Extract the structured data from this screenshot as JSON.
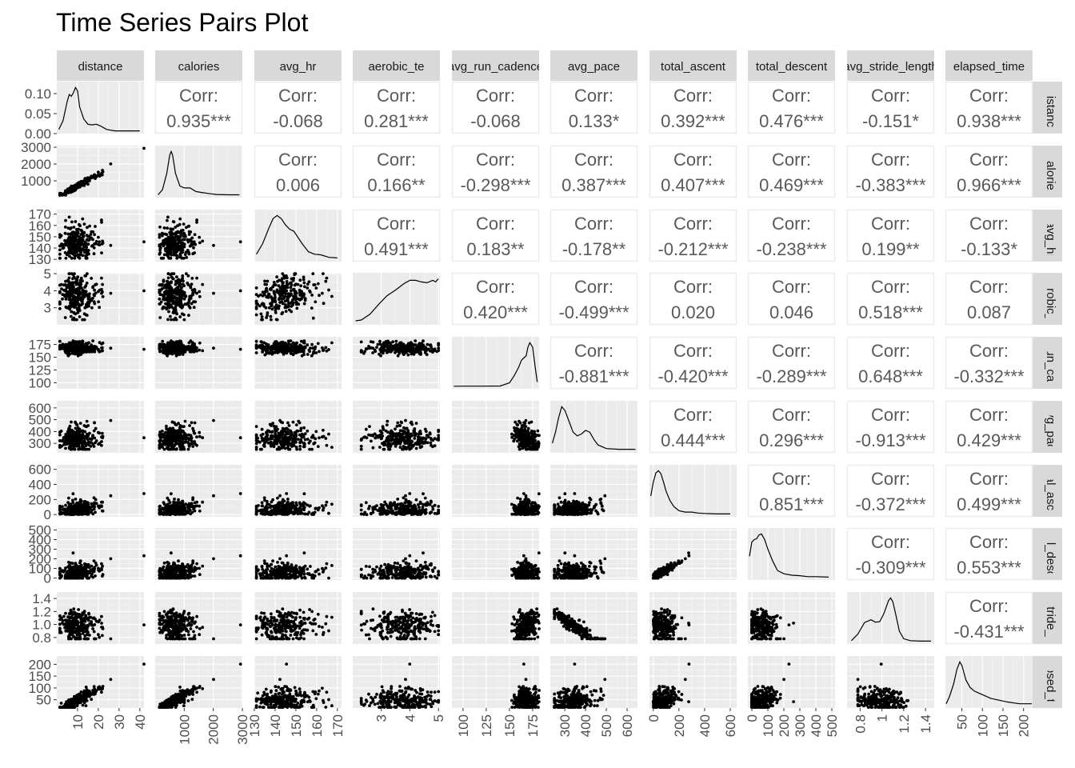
{
  "chart_data": {
    "type": "scatter",
    "title": "Time Series Pairs Plot",
    "variables": [
      "distance",
      "calories",
      "avg_hr",
      "aerobic_te",
      "avg_run_cadence",
      "avg_pace",
      "total_ascent",
      "total_descent",
      "avg_stride_length",
      "elapsed_time"
    ],
    "strip_labels_top": [
      "distance",
      "calories",
      "avg_hr",
      "aerobic_te",
      "avg_run_cadence",
      "avg_pace",
      "total_ascent",
      "total_descent",
      "avg_stride_length",
      "elapsed_time"
    ],
    "strip_labels_right": [
      "distance",
      "calories",
      "avg_hr",
      "aerobic_te",
      "avg_run_cadence",
      "avg_pace",
      "total_ascent",
      "total_descent",
      "avg_stride_length",
      "elapsed_time"
    ],
    "corr_label": "Corr:",
    "correlations": [
      {
        "row": "calories",
        "col": "distance",
        "label": "0.935***"
      },
      {
        "row": "avg_hr",
        "col": "distance",
        "label": "-0.068"
      },
      {
        "row": "aerobic_te",
        "col": "distance",
        "label": "0.281***"
      },
      {
        "row": "avg_run_cadence",
        "col": "distance",
        "label": "-0.068"
      },
      {
        "row": "avg_pace",
        "col": "distance",
        "label": "0.133*"
      },
      {
        "row": "total_ascent",
        "col": "distance",
        "label": "0.392***"
      },
      {
        "row": "total_descent",
        "col": "distance",
        "label": "0.476***"
      },
      {
        "row": "avg_stride_length",
        "col": "distance",
        "label": "-0.151*"
      },
      {
        "row": "elapsed_time",
        "col": "distance",
        "label": "0.938***"
      },
      {
        "row": "avg_hr",
        "col": "calories",
        "label": "0.006"
      },
      {
        "row": "aerobic_te",
        "col": "calories",
        "label": "0.166**"
      },
      {
        "row": "avg_run_cadence",
        "col": "calories",
        "label": "-0.298***"
      },
      {
        "row": "avg_pace",
        "col": "calories",
        "label": "0.387***"
      },
      {
        "row": "total_ascent",
        "col": "calories",
        "label": "0.407***"
      },
      {
        "row": "total_descent",
        "col": "calories",
        "label": "0.469***"
      },
      {
        "row": "avg_stride_length",
        "col": "calories",
        "label": "-0.383***"
      },
      {
        "row": "elapsed_time",
        "col": "calories",
        "label": "0.966***"
      },
      {
        "row": "aerobic_te",
        "col": "avg_hr",
        "label": "0.491***"
      },
      {
        "row": "avg_run_cadence",
        "col": "avg_hr",
        "label": "0.183**"
      },
      {
        "row": "avg_pace",
        "col": "avg_hr",
        "label": "-0.178**"
      },
      {
        "row": "total_ascent",
        "col": "avg_hr",
        "label": "-0.212***"
      },
      {
        "row": "total_descent",
        "col": "avg_hr",
        "label": "-0.238***"
      },
      {
        "row": "avg_stride_length",
        "col": "avg_hr",
        "label": "0.199**"
      },
      {
        "row": "elapsed_time",
        "col": "avg_hr",
        "label": "-0.133*"
      },
      {
        "row": "avg_run_cadence",
        "col": "aerobic_te",
        "label": "0.420***"
      },
      {
        "row": "avg_pace",
        "col": "aerobic_te",
        "label": "-0.499***"
      },
      {
        "row": "total_ascent",
        "col": "aerobic_te",
        "label": "0.020"
      },
      {
        "row": "total_descent",
        "col": "aerobic_te",
        "label": "0.046"
      },
      {
        "row": "avg_stride_length",
        "col": "aerobic_te",
        "label": "0.518***"
      },
      {
        "row": "elapsed_time",
        "col": "aerobic_te",
        "label": "0.087"
      },
      {
        "row": "avg_pace",
        "col": "avg_run_cadence",
        "label": "-0.881***"
      },
      {
        "row": "total_ascent",
        "col": "avg_run_cadence",
        "label": "-0.420***"
      },
      {
        "row": "total_descent",
        "col": "avg_run_cadence",
        "label": "-0.289***"
      },
      {
        "row": "avg_stride_length",
        "col": "avg_run_cadence",
        "label": "0.648***"
      },
      {
        "row": "elapsed_time",
        "col": "avg_run_cadence",
        "label": "-0.332***"
      },
      {
        "row": "total_ascent",
        "col": "avg_pace",
        "label": "0.444***"
      },
      {
        "row": "total_descent",
        "col": "avg_pace",
        "label": "0.296***"
      },
      {
        "row": "avg_stride_length",
        "col": "avg_pace",
        "label": "-0.913***"
      },
      {
        "row": "elapsed_time",
        "col": "avg_pace",
        "label": "0.429***"
      },
      {
        "row": "total_descent",
        "col": "total_ascent",
        "label": "0.851***"
      },
      {
        "row": "avg_stride_length",
        "col": "total_ascent",
        "label": "-0.372***"
      },
      {
        "row": "elapsed_time",
        "col": "total_ascent",
        "label": "0.499***"
      },
      {
        "row": "avg_stride_length",
        "col": "total_descent",
        "label": "-0.309***"
      },
      {
        "row": "elapsed_time",
        "col": "total_descent",
        "label": "0.553***"
      },
      {
        "row": "elapsed_time",
        "col": "avg_stride_length",
        "label": "-0.431***"
      }
    ],
    "x_axes": [
      {
        "var": "distance",
        "lim": [
          0,
          42
        ],
        "ticks": [
          10,
          20,
          30,
          40
        ]
      },
      {
        "var": "calories",
        "lim": [
          0,
          3000
        ],
        "ticks": [
          1000,
          2000,
          3000
        ]
      },
      {
        "var": "avg_hr",
        "lim": [
          130,
          172
        ],
        "ticks": [
          130,
          140,
          150,
          160,
          170
        ]
      },
      {
        "var": "aerobic_te",
        "lim": [
          2.0,
          5.05
        ],
        "ticks": [
          3,
          4,
          5
        ]
      },
      {
        "var": "avg_run_cadence",
        "lim": [
          88,
          182
        ],
        "ticks": [
          100,
          125,
          150,
          175
        ]
      },
      {
        "var": "avg_pace",
        "lim": [
          230,
          650
        ],
        "ticks": [
          300,
          400,
          500,
          600
        ]
      },
      {
        "var": "total_ascent",
        "lim": [
          -30,
          650
        ],
        "ticks": [
          0,
          200,
          400,
          600
        ]
      },
      {
        "var": "total_descent",
        "lim": [
          -25,
          520
        ],
        "ticks": [
          0,
          100,
          200,
          300,
          400,
          500
        ]
      },
      {
        "var": "avg_stride_length",
        "lim": [
          0.68,
          1.48
        ],
        "ticks": [
          0.8,
          1.0,
          1.2,
          1.4
        ]
      },
      {
        "var": "elapsed_time",
        "lim": [
          10,
          222
        ],
        "ticks": [
          50,
          100,
          150,
          200
        ]
      }
    ],
    "y_axes": [
      {
        "var": "distance",
        "lim": [
          0,
          0.13
        ],
        "ticks": [
          0.0,
          0.05,
          0.1
        ],
        "tick_labels": [
          "0.00",
          "0.05",
          "0.10"
        ]
      },
      {
        "var": "calories",
        "lim": [
          0,
          3100
        ],
        "ticks": [
          1000,
          2000,
          3000
        ],
        "tick_labels": [
          "1000",
          "2000",
          "3000"
        ]
      },
      {
        "var": "avg_hr",
        "lim": [
          128,
          174
        ],
        "ticks": [
          130,
          140,
          150,
          160,
          170
        ],
        "tick_labels": [
          "130",
          "140",
          "150",
          "160",
          "170"
        ]
      },
      {
        "var": "aerobic_te",
        "lim": [
          2.0,
          5.05
        ],
        "ticks": [
          3,
          4,
          5
        ],
        "tick_labels": [
          "3",
          "4",
          "5"
        ]
      },
      {
        "var": "avg_run_cadence",
        "lim": [
          88,
          190
        ],
        "ticks": [
          100,
          125,
          150,
          175
        ],
        "tick_labels": [
          "100",
          "125",
          "150",
          "175"
        ]
      },
      {
        "var": "avg_pace",
        "lim": [
          220,
          660
        ],
        "ticks": [
          300,
          400,
          500,
          600
        ],
        "tick_labels": [
          "300",
          "400",
          "500",
          "600"
        ]
      },
      {
        "var": "total_ascent",
        "lim": [
          -30,
          660
        ],
        "ticks": [
          0,
          200,
          400,
          600
        ],
        "tick_labels": [
          "0",
          "200",
          "400",
          "600"
        ]
      },
      {
        "var": "total_descent",
        "lim": [
          -20,
          520
        ],
        "ticks": [
          0,
          100,
          200,
          300,
          400,
          500
        ],
        "tick_labels": [
          "0",
          "100",
          "200",
          "300",
          "400",
          "500"
        ]
      },
      {
        "var": "avg_stride_length",
        "lim": [
          0.7,
          1.5
        ],
        "ticks": [
          0.8,
          1.0,
          1.2,
          1.4
        ],
        "tick_labels": [
          "0.8",
          "1.0",
          "1.2",
          "1.4"
        ]
      },
      {
        "var": "elapsed_time",
        "lim": [
          15,
          235
        ],
        "ticks": [
          50,
          100,
          150,
          200
        ],
        "tick_labels": [
          "50",
          "100",
          "150",
          "200"
        ]
      }
    ],
    "densities": [
      {
        "var": "distance",
        "x": [
          1,
          3,
          5,
          6,
          7,
          8,
          9,
          10,
          11,
          13,
          15,
          17,
          19,
          21,
          24,
          28,
          32,
          36,
          40
        ],
        "y": [
          0.005,
          0.03,
          0.085,
          0.105,
          0.1,
          0.11,
          0.125,
          0.115,
          0.07,
          0.035,
          0.02,
          0.018,
          0.02,
          0.015,
          0.005,
          0.001,
          0.001,
          0.001,
          0.001
        ]
      },
      {
        "var": "calories",
        "x": [
          100,
          250,
          400,
          500,
          550,
          600,
          700,
          850,
          1000,
          1200,
          1400,
          1600,
          1800,
          2100,
          2500,
          2900
        ],
        "y": [
          2e-05,
          0.0003,
          0.0012,
          0.0022,
          0.0024,
          0.0022,
          0.0012,
          0.0005,
          0.0004,
          0.0004,
          0.0002,
          0.00015,
          0.0001,
          4e-05,
          2e-05,
          2e-05
        ]
      },
      {
        "var": "avg_hr",
        "x": [
          131,
          134,
          137,
          139,
          141,
          143,
          145,
          147,
          149,
          151,
          153,
          156,
          159,
          162,
          166,
          170
        ],
        "y": [
          0.008,
          0.025,
          0.05,
          0.065,
          0.07,
          0.065,
          0.055,
          0.048,
          0.045,
          0.035,
          0.025,
          0.012,
          0.008,
          0.007,
          0.003,
          0.002
        ]
      },
      {
        "var": "aerobic_te",
        "x": [
          2.1,
          2.3,
          2.6,
          2.9,
          3.2,
          3.5,
          3.8,
          4.0,
          4.2,
          4.4,
          4.6,
          4.8,
          4.9,
          5.0
        ],
        "y": [
          0.02,
          0.03,
          0.1,
          0.22,
          0.33,
          0.4,
          0.48,
          0.52,
          0.52,
          0.5,
          0.49,
          0.52,
          0.5,
          0.54
        ]
      },
      {
        "var": "avg_run_cadence",
        "x": [
          90,
          100,
          120,
          140,
          150,
          155,
          160,
          163,
          165,
          168,
          170,
          172,
          175,
          178,
          180
        ],
        "y": [
          0.0002,
          0.0003,
          0.0003,
          0.0005,
          0.004,
          0.012,
          0.022,
          0.03,
          0.032,
          0.035,
          0.045,
          0.05,
          0.045,
          0.02,
          0.005
        ]
      },
      {
        "var": "avg_pace",
        "x": [
          240,
          255,
          270,
          285,
          300,
          320,
          340,
          360,
          380,
          400,
          420,
          440,
          460,
          500,
          560,
          640
        ],
        "y": [
          0.002,
          0.005,
          0.009,
          0.012,
          0.011,
          0.008,
          0.005,
          0.004,
          0.0045,
          0.0055,
          0.005,
          0.003,
          0.0015,
          0.0005,
          0.0003,
          0.0003
        ]
      },
      {
        "var": "total_ascent",
        "x": [
          -20,
          0,
          20,
          40,
          60,
          80,
          100,
          130,
          160,
          200,
          250,
          300,
          350,
          400,
          500,
          600
        ],
        "y": [
          0.004,
          0.007,
          0.009,
          0.0095,
          0.0088,
          0.007,
          0.005,
          0.003,
          0.0017,
          0.0008,
          0.0005,
          0.0005,
          0.0003,
          0.0002,
          0.0001,
          0.0001
        ]
      },
      {
        "var": "total_descent",
        "x": [
          -15,
          0,
          15,
          30,
          45,
          60,
          80,
          100,
          130,
          160,
          200,
          250,
          300,
          350,
          400,
          480
        ],
        "y": [
          0.0045,
          0.0075,
          0.008,
          0.0082,
          0.009,
          0.0092,
          0.008,
          0.006,
          0.0035,
          0.0015,
          0.0008,
          0.0005,
          0.0004,
          0.0002,
          0.0002,
          0.0001
        ]
      },
      {
        "var": "avg_stride_length",
        "x": [
          0.72,
          0.78,
          0.84,
          0.9,
          0.94,
          0.98,
          1.02,
          1.06,
          1.08,
          1.1,
          1.12,
          1.16,
          1.2,
          1.26,
          1.35,
          1.45
        ],
        "y": [
          0.1,
          0.8,
          2.0,
          2.3,
          2.05,
          2.1,
          3.0,
          4.3,
          4.6,
          4.2,
          3.2,
          1.1,
          0.3,
          0.1,
          0.05,
          0.05
        ]
      },
      {
        "var": "elapsed_time",
        "x": [
          12,
          20,
          30,
          38,
          45,
          50,
          60,
          70,
          80,
          90,
          100,
          120,
          140,
          160,
          190,
          220
        ],
        "y": [
          0.001,
          0.005,
          0.012,
          0.02,
          0.024,
          0.022,
          0.014,
          0.01,
          0.008,
          0.007,
          0.006,
          0.004,
          0.003,
          0.002,
          0.001,
          0.001
        ]
      }
    ],
    "grid": true,
    "legend": "none"
  }
}
